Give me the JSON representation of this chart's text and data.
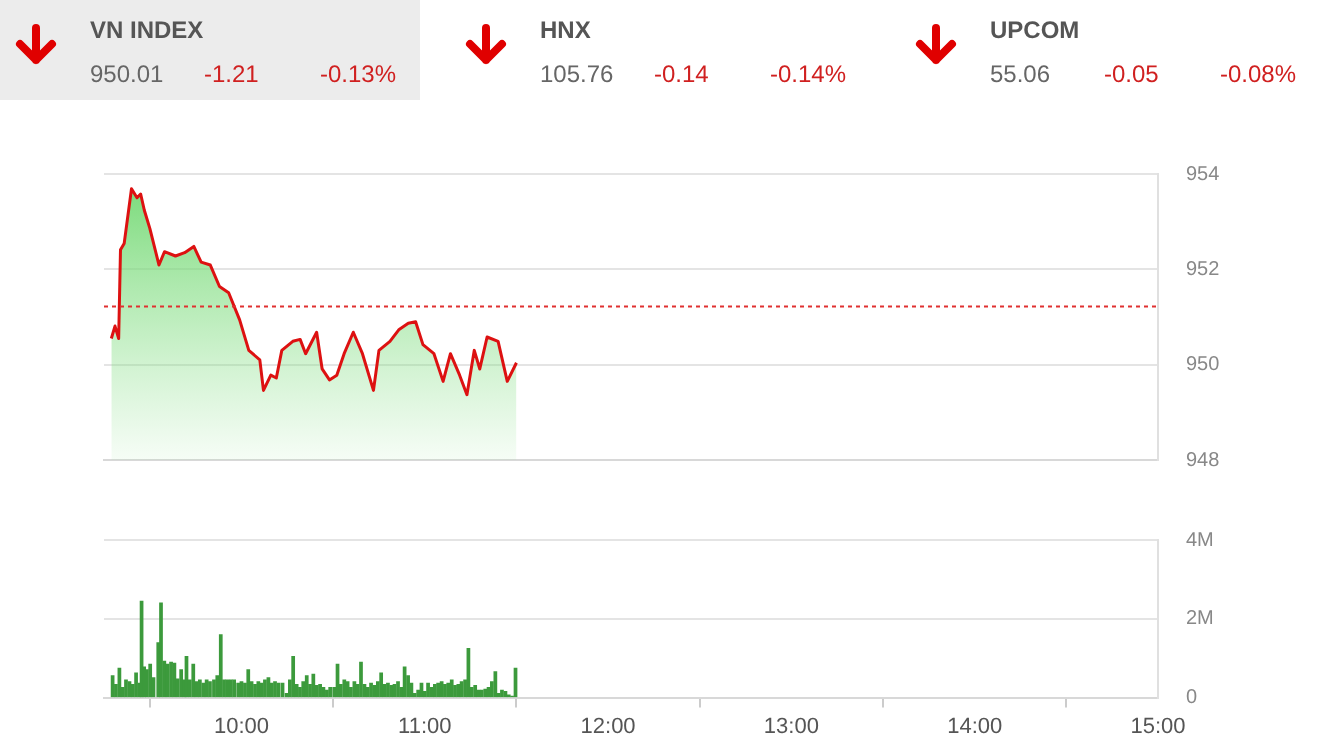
{
  "chart_data": [
    {
      "type": "other",
      "title": "VN INDEX",
      "annotations": [
        "950.01",
        "-1.21",
        "-0.13%"
      ]
    },
    {
      "type": "other",
      "title": "HNX",
      "annotations": [
        "105.76",
        "-0.14",
        "-0.14%"
      ]
    },
    {
      "type": "other",
      "title": "UPCOM",
      "annotations": [
        "55.06",
        "-0.05",
        "-0.08%"
      ]
    },
    {
      "type": "area",
      "x": [
        9.29,
        9.31,
        9.33,
        9.34,
        9.36,
        9.4,
        9.43,
        9.45,
        9.47,
        9.5,
        9.55,
        9.58,
        9.64,
        9.69,
        9.74,
        9.78,
        9.83,
        9.88,
        9.93,
        9.99,
        10.04,
        10.1,
        10.12,
        10.16,
        10.19,
        10.22,
        10.28,
        10.32,
        10.35,
        10.41,
        10.44,
        10.48,
        10.52,
        10.56,
        10.61,
        10.66,
        10.72,
        10.75,
        10.81,
        10.86,
        10.91,
        10.95,
        10.99,
        11.05,
        11.1,
        11.14,
        11.19,
        11.23,
        11.27,
        11.3,
        11.34,
        11.4,
        11.45,
        11.5
      ],
      "series": [
        {
          "color": "#dd1111",
          "values": [
            950.55,
            950.81,
            950.55,
            952.41,
            952.54,
            953.69,
            953.5,
            953.58,
            953.24,
            952.86,
            952.09,
            952.37,
            952.28,
            952.35,
            952.48,
            952.15,
            952.09,
            951.64,
            951.51,
            950.94,
            950.3,
            950.1,
            949.46,
            949.78,
            949.72,
            950.3,
            950.49,
            950.53,
            950.23,
            950.68,
            949.91,
            949.68,
            949.78,
            950.23,
            950.68,
            950.23,
            949.46,
            950.3,
            950.49,
            950.74,
            950.87,
            950.9,
            950.42,
            950.23,
            949.65,
            950.23,
            949.78,
            949.37,
            950.3,
            949.91,
            950.58,
            950.49,
            949.65,
            950.04
          ]
        }
      ],
      "xlim": [
        9.25,
        15
      ],
      "ylim": [
        948,
        954
      ],
      "yticks": [
        948,
        950,
        952,
        954
      ],
      "tick_labels": "y",
      "grid": "y",
      "ref_lines": [
        {
          "axis": "y",
          "value": 951.22,
          "color": "#e03030",
          "line_style": "dotted"
        }
      ]
    },
    {
      "type": "bar",
      "x": [
        9.297,
        9.315,
        9.334,
        9.352,
        9.37,
        9.389,
        9.407,
        9.425,
        9.444,
        9.455,
        9.469,
        9.484,
        9.502,
        9.52,
        9.546,
        9.561,
        9.579,
        9.597,
        9.616,
        9.634,
        9.652,
        9.671,
        9.689,
        9.7,
        9.718,
        9.737,
        9.755,
        9.773,
        9.792,
        9.81,
        9.828,
        9.85,
        9.868,
        9.887,
        9.905,
        9.923,
        9.942,
        9.96,
        9.982,
        10.0,
        10.019,
        10.037,
        10.055,
        10.074,
        10.092,
        10.11,
        10.128,
        10.147,
        10.165,
        10.183,
        10.202,
        10.224,
        10.246,
        10.264,
        10.282,
        10.301,
        10.319,
        10.337,
        10.356,
        10.374,
        10.392,
        10.411,
        10.429,
        10.447,
        10.466,
        10.484,
        10.506,
        10.524,
        10.542,
        10.561,
        10.579,
        10.597,
        10.616,
        10.634,
        10.652,
        10.671,
        10.689,
        10.707,
        10.726,
        10.744,
        10.762,
        10.78,
        10.799,
        10.817,
        10.835,
        10.854,
        10.872,
        10.89,
        10.909,
        10.927,
        10.945,
        10.964,
        10.982,
        11.0,
        11.018,
        11.037,
        11.055,
        11.073,
        11.092,
        11.11,
        11.128,
        11.147,
        11.165,
        11.183,
        11.201,
        11.22,
        11.238,
        11.256,
        11.275,
        11.293,
        11.311,
        11.33,
        11.348,
        11.366,
        11.385,
        11.403,
        11.421,
        11.44,
        11.458,
        11.476,
        11.495
      ],
      "series": [
        {
          "color": "#3c9a3c",
          "values": [
            0.55,
            0.33,
            0.74,
            0.25,
            0.44,
            0.4,
            0.33,
            0.62,
            0.36,
            2.44,
            0.77,
            0.7,
            0.84,
            0.5,
            1.39,
            2.4,
            0.92,
            0.84,
            0.89,
            0.87,
            0.47,
            0.7,
            0.44,
            1.04,
            0.44,
            0.84,
            0.4,
            0.44,
            0.36,
            0.44,
            0.4,
            0.44,
            0.55,
            1.59,
            0.44,
            0.44,
            0.44,
            0.44,
            0.36,
            0.4,
            0.36,
            0.7,
            0.4,
            0.33,
            0.4,
            0.36,
            0.44,
            0.5,
            0.36,
            0.4,
            0.36,
            0.36,
            0.1,
            0.44,
            1.04,
            0.33,
            0.25,
            0.4,
            0.55,
            0.33,
            0.59,
            0.3,
            0.33,
            0.25,
            0.18,
            0.25,
            0.25,
            0.84,
            0.33,
            0.44,
            0.4,
            0.25,
            0.4,
            0.33,
            0.89,
            0.33,
            0.25,
            0.36,
            0.3,
            0.4,
            0.62,
            0.33,
            0.36,
            0.3,
            0.33,
            0.4,
            0.25,
            0.77,
            0.55,
            0.36,
            0.1,
            0.18,
            0.36,
            0.15,
            0.36,
            0.25,
            0.33,
            0.36,
            0.4,
            0.33,
            0.36,
            0.44,
            0.3,
            0.33,
            0.4,
            0.44,
            1.24,
            0.25,
            0.3,
            0.18,
            0.18,
            0.21,
            0.25,
            0.4,
            0.65,
            0.1,
            0.18,
            0.15,
            0.06,
            0.03,
            0.74
          ]
        }
      ],
      "xlim": [
        9.25,
        15
      ],
      "xticks": [
        {
          "value": 10,
          "label": "10:00"
        },
        {
          "value": 11,
          "label": "11:00"
        },
        {
          "value": 12,
          "label": "12:00"
        },
        {
          "value": 13,
          "label": "13:00"
        },
        {
          "value": 14,
          "label": "14:00"
        },
        {
          "value": 15,
          "label": "15:00"
        }
      ],
      "ylim": [
        0,
        4
      ],
      "yticks": [
        0,
        {
          "value": 2,
          "label": "2M"
        },
        {
          "value": 4,
          "label": "4M"
        }
      ],
      "grid": "y"
    }
  ]
}
